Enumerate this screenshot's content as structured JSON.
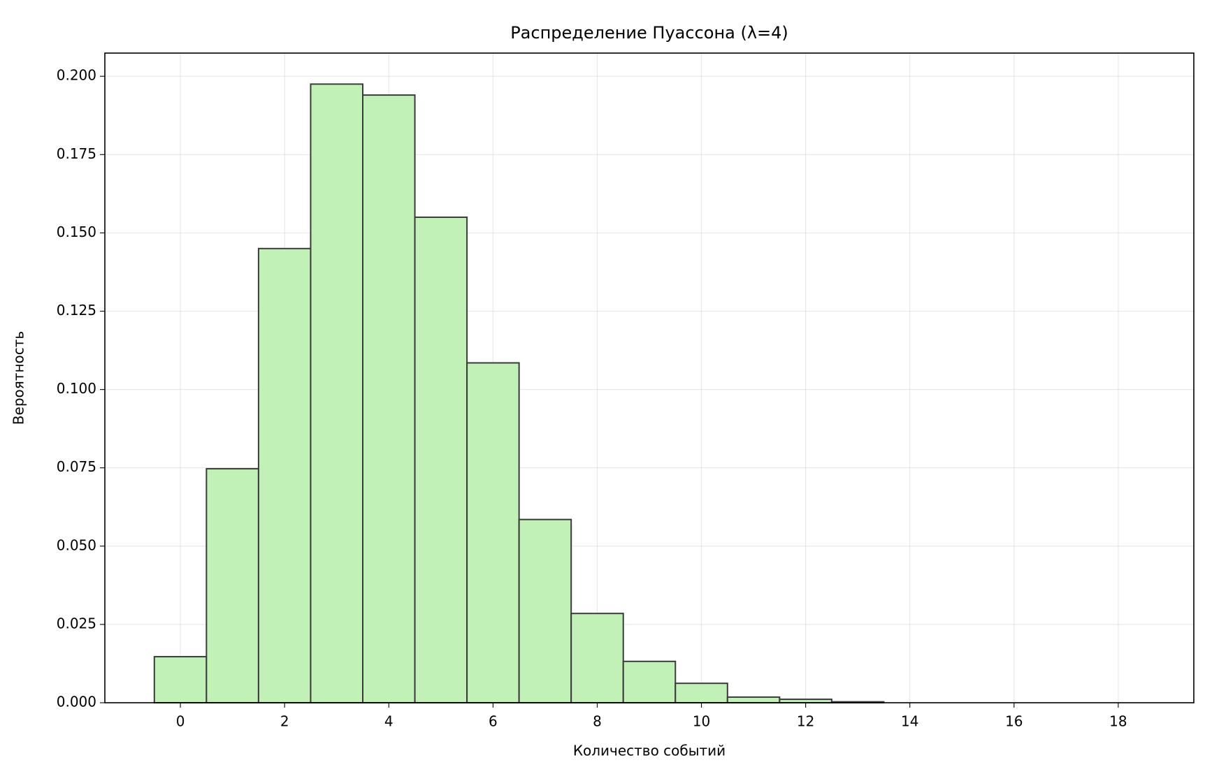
{
  "chart_data": {
    "type": "histogram",
    "title": "Распределение Пуассона (λ=4)",
    "xlabel": "Количество событий",
    "ylabel": "Вероятность",
    "bins": [
      -0.5,
      0.5,
      1.5,
      2.5,
      3.5,
      4.5,
      5.5,
      6.5,
      7.5,
      8.5,
      9.5,
      10.5,
      11.5,
      12.5,
      13.5,
      14.5,
      15.5,
      16.5,
      17.5,
      18.5
    ],
    "values": [
      0.0147,
      0.0747,
      0.145,
      0.1975,
      0.194,
      0.155,
      0.1085,
      0.0585,
      0.0285,
      0.0132,
      0.0062,
      0.0018,
      0.0011,
      0.0003,
      0,
      0,
      0,
      0,
      0
    ],
    "color": "#c1f1b7",
    "edgecolor": "#3b3b3b",
    "xlim": [
      -1.45,
      19.45
    ],
    "ylim": [
      0,
      0.2074
    ],
    "xticks": [
      0,
      2,
      4,
      6,
      8,
      10,
      12,
      14,
      16,
      18
    ],
    "yticks": [
      {
        "value": 0,
        "label": "0.000"
      },
      {
        "value": 0.025,
        "label": "0.025"
      },
      {
        "value": 0.05,
        "label": "0.050"
      },
      {
        "value": 0.075,
        "label": "0.075"
      },
      {
        "value": 0.1,
        "label": "0.100"
      },
      {
        "value": 0.125,
        "label": "0.125"
      },
      {
        "value": 0.15,
        "label": "0.150"
      },
      {
        "value": 0.175,
        "label": "0.175"
      },
      {
        "value": 0.2,
        "label": "0.200"
      }
    ],
    "grid": true
  }
}
